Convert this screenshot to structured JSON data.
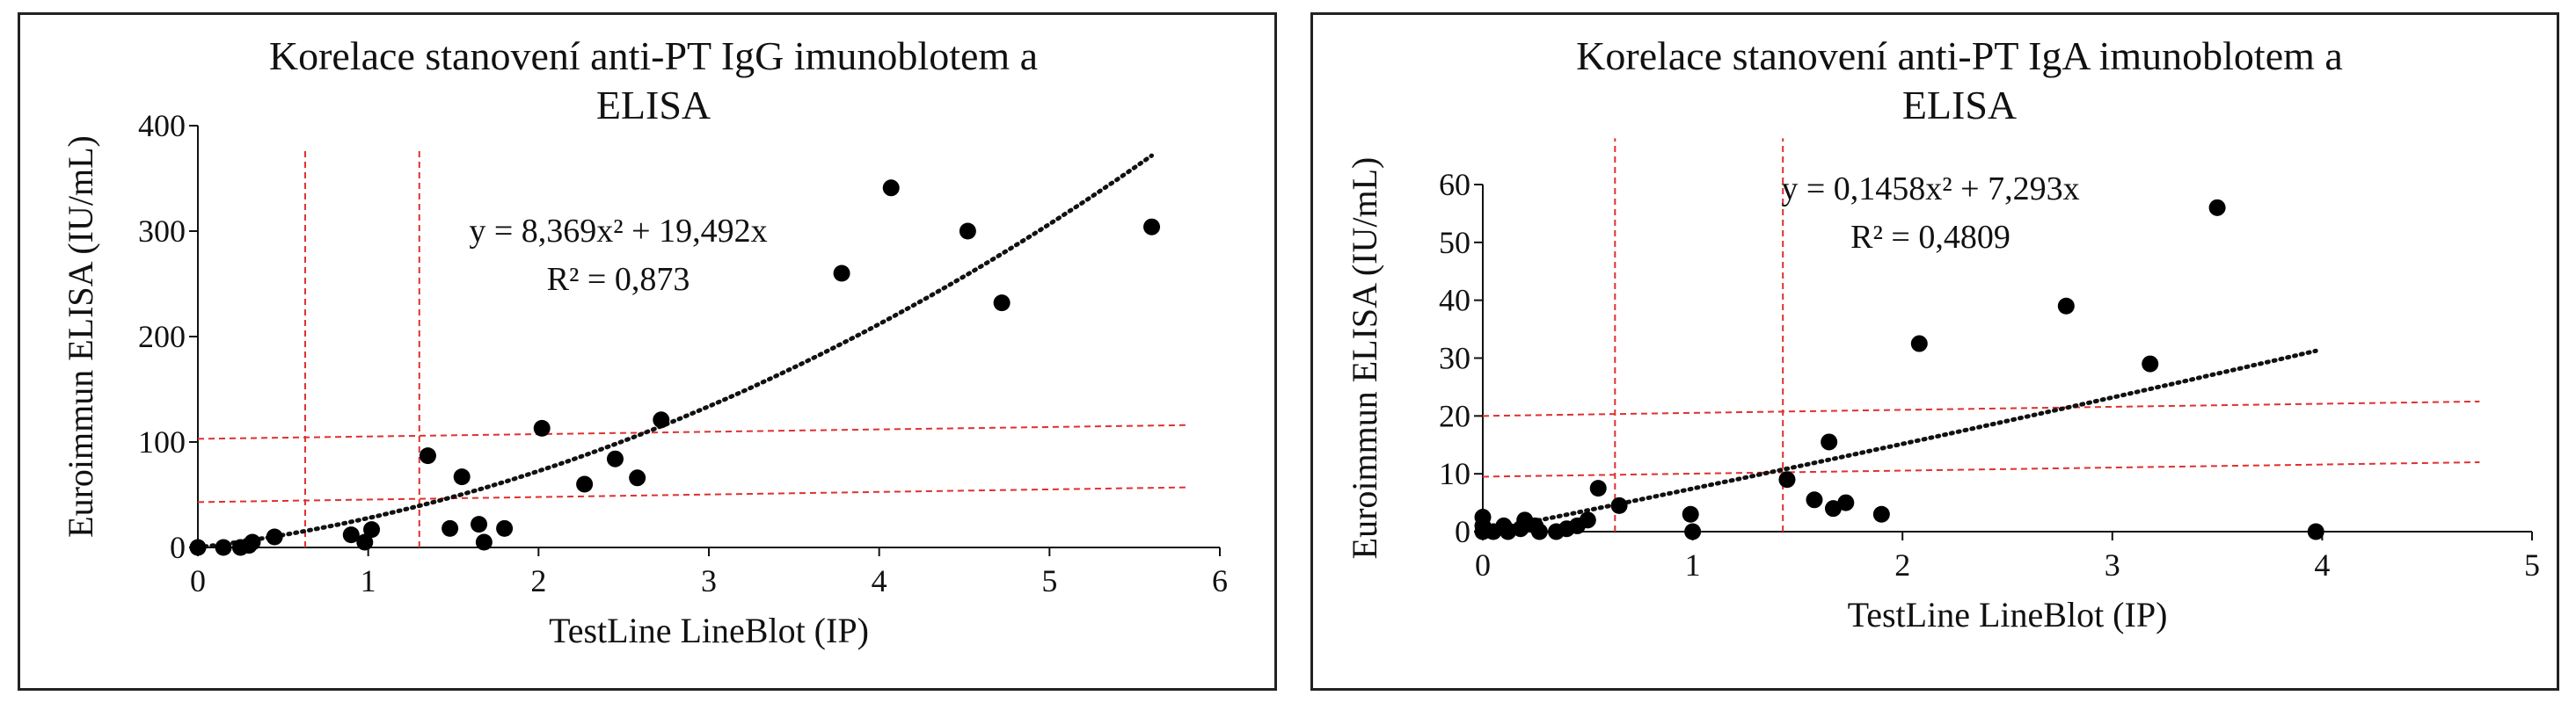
{
  "chart_data": [
    {
      "type": "scatter",
      "title_lines": [
        "Korelace stanovení anti-PT IgG imunoblotem a",
        "ELISA"
      ],
      "xlabel": "TestLine LineBlot (IP)",
      "ylabel": "Euroimmun ELISA (IU/mL)",
      "xlim": [
        0,
        6
      ],
      "ylim": [
        0,
        400
      ],
      "xticks": [
        0,
        1,
        2,
        3,
        4,
        5,
        6
      ],
      "yticks": [
        0,
        100,
        200,
        300,
        400
      ],
      "xtick_labels": [
        "0",
        "1",
        "2",
        "3",
        "4",
        "5",
        "6"
      ],
      "ytick_labels": [
        "0",
        "100",
        "200",
        "300",
        "400"
      ],
      "grid": false,
      "points": [
        [
          0.0,
          0
        ],
        [
          0.15,
          0
        ],
        [
          0.25,
          0
        ],
        [
          0.3,
          2
        ],
        [
          0.32,
          5
        ],
        [
          0.45,
          10
        ],
        [
          0.9,
          12
        ],
        [
          0.98,
          5
        ],
        [
          1.02,
          17
        ],
        [
          1.35,
          87
        ],
        [
          1.48,
          18
        ],
        [
          1.55,
          67
        ],
        [
          1.65,
          22
        ],
        [
          1.68,
          5
        ],
        [
          1.8,
          18
        ],
        [
          2.02,
          113
        ],
        [
          2.27,
          60
        ],
        [
          2.45,
          84
        ],
        [
          2.58,
          66
        ],
        [
          2.72,
          121
        ],
        [
          3.78,
          260
        ],
        [
          4.07,
          341
        ],
        [
          4.52,
          300
        ],
        [
          4.72,
          232
        ],
        [
          5.6,
          304
        ]
      ],
      "trendline": {
        "type": "polynomial",
        "a": 8.369,
        "b": 19.492,
        "x_range": [
          0,
          5.6
        ]
      },
      "equation_lines": [
        "y = 8,369x² + 19,492x",
        "R² = 0,873"
      ],
      "reference_lines": {
        "vertical_x": [
          0.63,
          1.3
        ],
        "vertical_y_range": [
          0,
          380
        ],
        "horizontal": [
          {
            "x_range": [
              0,
              5.8
            ],
            "y_range": [
              103,
              116
            ]
          },
          {
            "x_range": [
              0,
              5.8
            ],
            "y_range": [
              43,
              57
            ]
          }
        ],
        "color": "#e03030"
      },
      "marker_color": "#000000"
    },
    {
      "type": "scatter",
      "title_lines": [
        "Korelace stanovení anti-PT IgA imunoblotem a",
        "ELISA"
      ],
      "xlabel": "TestLine LineBlot (IP)",
      "ylabel": "Euroimmun ELISA (IU/mL)",
      "xlim": [
        0,
        5
      ],
      "ylim": [
        0,
        60
      ],
      "xticks": [
        0,
        1,
        2,
        3,
        4,
        5
      ],
      "yticks": [
        0,
        10,
        20,
        30,
        40,
        50,
        60
      ],
      "xtick_labels": [
        "0",
        "1",
        "2",
        "3",
        "4",
        "5"
      ],
      "ytick_labels": [
        "0",
        "10",
        "20",
        "30",
        "40",
        "50",
        "60"
      ],
      "grid": false,
      "points": [
        [
          0.0,
          0
        ],
        [
          0.0,
          1
        ],
        [
          0.0,
          2.5
        ],
        [
          0.05,
          0
        ],
        [
          0.1,
          1
        ],
        [
          0.12,
          0
        ],
        [
          0.18,
          0.5
        ],
        [
          0.2,
          2
        ],
        [
          0.25,
          1
        ],
        [
          0.27,
          0
        ],
        [
          0.35,
          0
        ],
        [
          0.4,
          0.5
        ],
        [
          0.45,
          1
        ],
        [
          0.5,
          2
        ],
        [
          0.55,
          7.5
        ],
        [
          0.65,
          4.5
        ],
        [
          0.99,
          3
        ],
        [
          1.0,
          0
        ],
        [
          1.45,
          9
        ],
        [
          1.58,
          5.5
        ],
        [
          1.65,
          15.5
        ],
        [
          1.67,
          4
        ],
        [
          1.73,
          5
        ],
        [
          1.9,
          3
        ],
        [
          2.08,
          32.5
        ],
        [
          2.78,
          39
        ],
        [
          3.18,
          29
        ],
        [
          3.5,
          56
        ],
        [
          3.97,
          0
        ]
      ],
      "trendline": {
        "type": "polynomial",
        "a": 0.1458,
        "b": 7.293,
        "x_range": [
          0,
          3.97
        ]
      },
      "equation_lines": [
        "y = 0,1458x² + 7,293x",
        "R² = 0,4809"
      ],
      "reference_lines": {
        "vertical_x": [
          0.63,
          1.43
        ],
        "vertical_y_range": [
          0,
          68
        ],
        "horizontal": [
          {
            "x_range": [
              0,
              4.75
            ],
            "y_range": [
              20,
              22.5
            ]
          },
          {
            "x_range": [
              0,
              4.75
            ],
            "y_range": [
              9.5,
              12
            ]
          }
        ],
        "color": "#e03030"
      },
      "marker_color": "#000000"
    }
  ]
}
